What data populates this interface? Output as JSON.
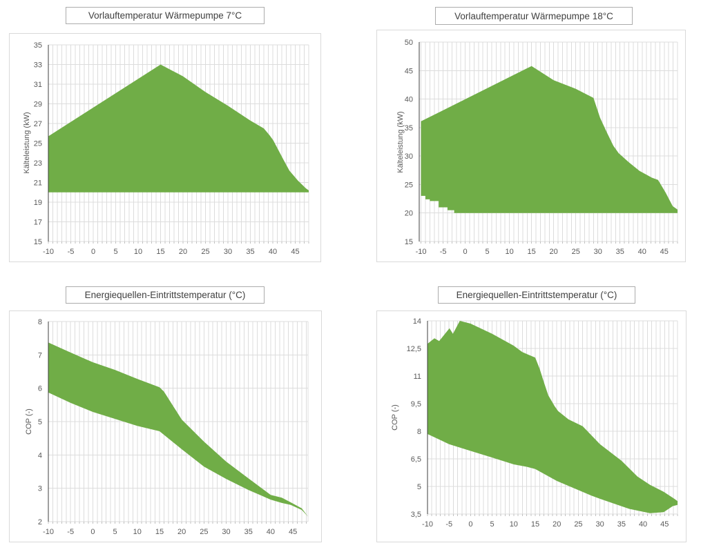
{
  "colors": {
    "area_green": "#70AD47",
    "gridline": "#dcdcdc",
    "axis_line": "#3f3f3f",
    "tick_stub": "#c0c0c0",
    "tick_text": "#595959",
    "title_text": "#3f3f3f",
    "title_border": "#ababab",
    "frame_border": "#d9d9d9"
  },
  "chart_data": [
    {
      "type": "area",
      "title": "Vorlauftemperatur Wärmepumpe 7°C",
      "ylabel": "Kälteleistung (kW)",
      "xlabel": "",
      "xlim": [
        -10,
        48
      ],
      "ylim": [
        15,
        35
      ],
      "x_ticks": [
        -10,
        -5,
        0,
        5,
        10,
        15,
        20,
        25,
        30,
        35,
        40,
        45
      ],
      "x_tick_labels": [
        "-10",
        "-5",
        "0",
        "5",
        "10",
        "15",
        "20",
        "25",
        "30",
        "35",
        "40",
        "45"
      ],
      "x_minor_step": 1,
      "y_ticks": [
        15,
        17,
        19,
        21,
        23,
        25,
        27,
        29,
        31,
        33,
        35
      ],
      "y_tick_labels": [
        "15",
        "17",
        "19",
        "21",
        "23",
        "25",
        "27",
        "29",
        "31",
        "33",
        "35"
      ],
      "grid": "vertical-minor-and-horizontal-major",
      "legend": "none",
      "band": {
        "x_upper": [
          -10,
          15,
          20,
          25,
          30,
          35,
          38,
          39.3,
          40.1,
          42.4,
          43.7,
          45.6,
          47.4,
          48
        ],
        "upper": [
          25.7,
          33.0,
          31.8,
          30.2,
          28.8,
          27.3,
          26.5,
          25.8,
          25.3,
          23.3,
          22.2,
          21.2,
          20.4,
          20.2
        ],
        "x_lower": [
          -10,
          48
        ],
        "lower": [
          20.0,
          20.0
        ]
      }
    },
    {
      "type": "area",
      "title": "Vorlauftemperatur Wärmepumpe 18°C",
      "ylabel": "Kälteleistung (kW)",
      "xlabel": "",
      "xlim": [
        -10.4,
        48
      ],
      "ylim": [
        15,
        50
      ],
      "x_ticks": [
        -10,
        -5,
        0,
        5,
        10,
        15,
        20,
        25,
        30,
        35,
        40,
        45
      ],
      "x_tick_labels": [
        "-10",
        "-5",
        "0",
        "5",
        "10",
        "15",
        "20",
        "25",
        "30",
        "35",
        "40",
        "45"
      ],
      "x_minor_step": 1,
      "y_ticks": [
        15,
        20,
        25,
        30,
        35,
        40,
        45,
        50
      ],
      "y_tick_labels": [
        "15",
        "20",
        "25",
        "30",
        "35",
        "40",
        "45",
        "50"
      ],
      "grid": "vertical-minor-and-horizontal-major",
      "legend": "none",
      "band": {
        "x_upper": [
          -10,
          15,
          20,
          25,
          29,
          30.5,
          32,
          33.5,
          34.7,
          37,
          39.4,
          42.2,
          43.6,
          45.3,
          46.9,
          48
        ],
        "upper": [
          36.1,
          45.8,
          43.3,
          41.8,
          40.2,
          36.7,
          34.2,
          31.8,
          30.5,
          28.9,
          27.4,
          26.2,
          25.8,
          23.6,
          21.2,
          20.6
        ],
        "x_lower": [
          -10,
          -9,
          -9,
          -8,
          -8,
          -6,
          -6,
          -4,
          -4,
          -2.5,
          -2.5,
          48
        ],
        "lower": [
          23.0,
          23.0,
          22.4,
          22.4,
          22.1,
          22.1,
          21.0,
          21.0,
          20.5,
          20.5,
          20.0,
          20.0
        ]
      }
    },
    {
      "type": "area",
      "title": "Energiequellen-Eintrittstemperatur (°C)",
      "ylabel": "COP (-)",
      "xlabel": "",
      "xlim": [
        -10,
        48.4
      ],
      "ylim": [
        2,
        8
      ],
      "x_ticks": [
        -10,
        -5,
        0,
        5,
        10,
        15,
        20,
        25,
        30,
        35,
        40,
        45
      ],
      "x_tick_labels": [
        "-10",
        "-5",
        "0",
        "5",
        "10",
        "15",
        "20",
        "25",
        "30",
        "35",
        "40",
        "45"
      ],
      "x_minor_step": 1,
      "y_ticks": [
        2,
        3,
        4,
        5,
        6,
        7,
        8
      ],
      "y_tick_labels": [
        "2",
        "3",
        "4",
        "5",
        "6",
        "7",
        "8"
      ],
      "grid": "vertical-minor-and-horizontal-major",
      "legend": "none",
      "band": {
        "x_upper": [
          -10,
          -5,
          0,
          5,
          10,
          15,
          16,
          20,
          25,
          30,
          35,
          40,
          42.5,
          44.5,
          47,
          48.4
        ],
        "upper": [
          7.37,
          7.07,
          6.78,
          6.55,
          6.28,
          6.03,
          5.9,
          5.06,
          4.4,
          3.8,
          3.3,
          2.8,
          2.72,
          2.58,
          2.4,
          2.15
        ],
        "x_lower": [
          -10,
          -5,
          0,
          5,
          10,
          15,
          20,
          25,
          30,
          35,
          40,
          42.5,
          44.5,
          47,
          48.4
        ],
        "lower": [
          5.87,
          5.56,
          5.29,
          5.08,
          4.87,
          4.71,
          4.17,
          3.65,
          3.28,
          2.95,
          2.66,
          2.56,
          2.5,
          2.35,
          2.15
        ]
      }
    },
    {
      "type": "area",
      "title": "Energiequellen-Eintrittstemperatur (°C)",
      "ylabel": "COP (-)",
      "xlabel": "",
      "xlim": [
        -10,
        48
      ],
      "ylim": [
        3.5,
        14
      ],
      "x_ticks": [
        -10,
        -5,
        0,
        5,
        10,
        15,
        20,
        25,
        30,
        35,
        40,
        45
      ],
      "x_tick_labels": [
        "-10",
        "-5",
        "0",
        "5",
        "10",
        "15",
        "20",
        "25",
        "30",
        "35",
        "40",
        "45"
      ],
      "x_minor_step": 1,
      "y_ticks": [
        3.5,
        5,
        6.5,
        8,
        9.5,
        11,
        12.5,
        14
      ],
      "y_tick_labels": [
        "3,5",
        "5",
        "6,5",
        "8",
        "9,5",
        "11",
        "12,5",
        "14"
      ],
      "grid": "vertical-minor-and-horizontal-major",
      "legend": "none",
      "band": {
        "x_upper": [
          -10,
          -8.4,
          -7.3,
          -4.9,
          -4.1,
          -2.5,
          0,
          5,
          10,
          12,
          15,
          16,
          17,
          18,
          19.5,
          20.3,
          22.7,
          26,
          30,
          35,
          38.7,
          41.6,
          44.8,
          47.2,
          48
        ],
        "upper": [
          12.75,
          13.05,
          12.9,
          13.6,
          13.3,
          14.0,
          13.85,
          13.3,
          12.65,
          12.3,
          12.0,
          11.4,
          10.67,
          9.96,
          9.36,
          9.1,
          8.65,
          8.27,
          7.3,
          6.4,
          5.54,
          5.09,
          4.71,
          4.34,
          4.2
        ],
        "x_lower": [
          -10,
          -5,
          0,
          5,
          10,
          13,
          15,
          20,
          25,
          28,
          30,
          33.6,
          36.8,
          41.6,
          44.8,
          46.9,
          48
        ],
        "lower": [
          7.85,
          7.3,
          6.93,
          6.57,
          6.2,
          6.07,
          5.95,
          5.3,
          4.8,
          4.5,
          4.33,
          4.04,
          3.78,
          3.55,
          3.6,
          3.93,
          4.0
        ]
      }
    }
  ]
}
